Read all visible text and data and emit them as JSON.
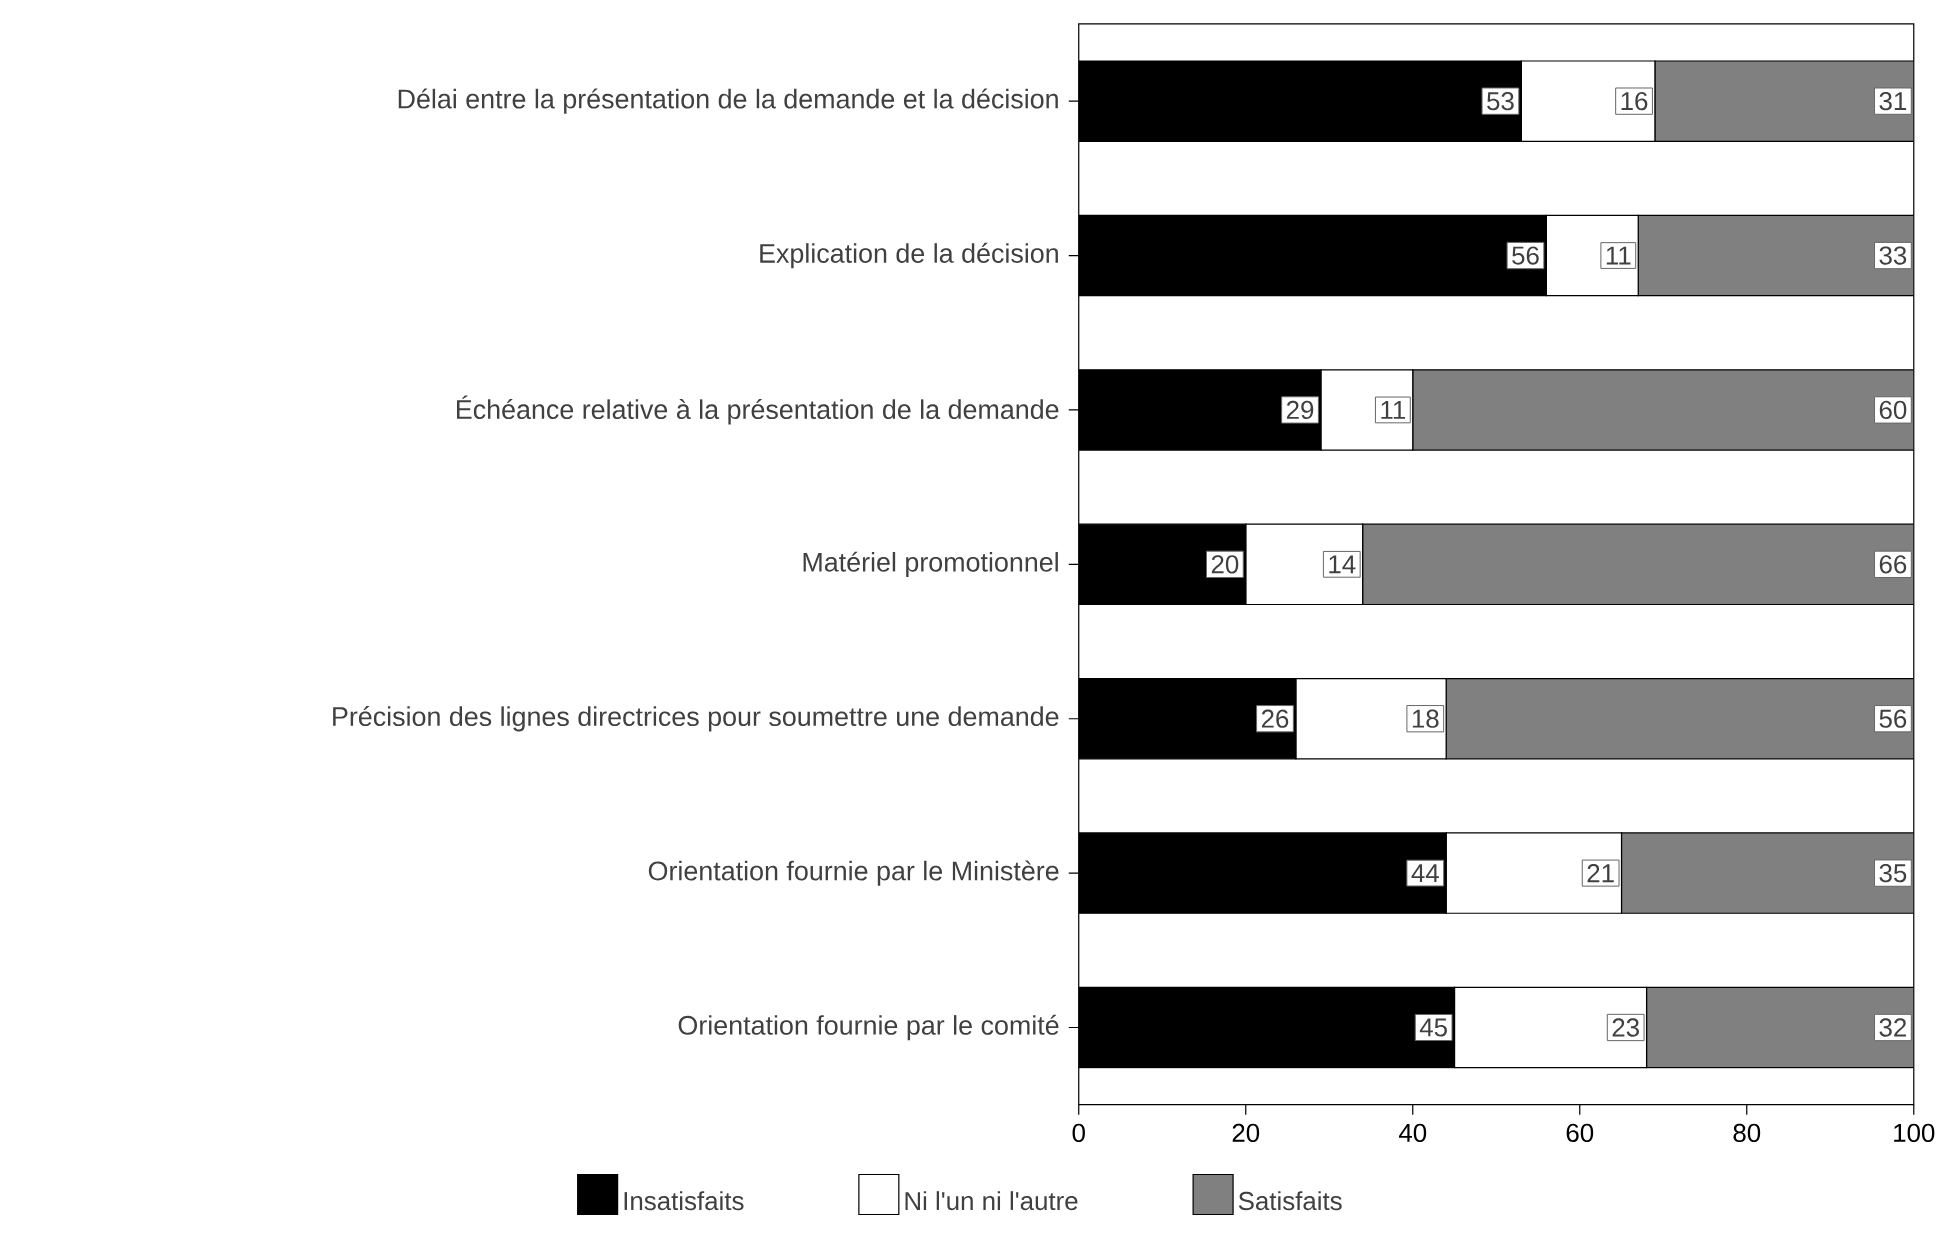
{
  "chart_data": {
    "type": "bar",
    "orientation": "horizontal",
    "stacked": true,
    "categories": [
      "Délai entre la présentation de la demande et la décision",
      "Explication de la décision",
      "Échéance relative à la présentation de la demande",
      "Matériel promotionnel",
      "Précision des lignes directrices pour soumettre une demande",
      "Orientation fournie par le Ministère",
      "Orientation fournie par le comité"
    ],
    "series": [
      {
        "name": "Insatisfaits",
        "color": "#000000",
        "values": [
          53,
          56,
          29,
          20,
          26,
          44,
          45
        ]
      },
      {
        "name": "Ni l'un ni l'autre",
        "color": "#ffffff",
        "values": [
          16,
          11,
          11,
          14,
          18,
          21,
          23
        ]
      },
      {
        "name": "Satisfaits",
        "color": "#808080",
        "values": [
          31,
          33,
          60,
          66,
          56,
          35,
          32
        ]
      }
    ],
    "xlim": [
      0,
      100
    ],
    "xticks": [
      0,
      20,
      40,
      60,
      80,
      100
    ],
    "data_labels": true,
    "legend": "bottom"
  }
}
